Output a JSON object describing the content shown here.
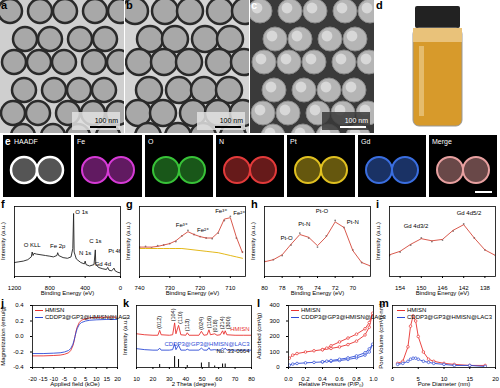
{
  "image_panels": [
    {
      "panel": "a",
      "scale_bar": "100 nm"
    },
    {
      "panel": "b",
      "scale_bar": "100 nm"
    },
    {
      "panel": "c",
      "scale_bar": "100 nm"
    },
    {
      "panel": "d"
    },
    {
      "panel": "e",
      "maps": [
        "HAADF",
        "Fe",
        "O",
        "N",
        "Pt",
        "Gd",
        "Merge"
      ],
      "colors": [
        "#ffffff",
        "#d63ad6",
        "#38c238",
        "#e23a3a",
        "#e0c020",
        "#3a6ee0",
        "#e8a0a0"
      ]
    }
  ],
  "chart_data": [
    {
      "panel": "f",
      "type": "line",
      "x_label": "Binding Energy (eV)",
      "y_label": "Intensity (a.u.)",
      "xlim": [
        1200,
        0
      ],
      "xticks": [
        1200,
        800,
        400,
        0
      ],
      "ylim": [
        0,
        100
      ],
      "tick_labels": "x",
      "x": [
        1200,
        1150,
        1100,
        1050,
        1010,
        1000,
        990,
        980,
        950,
        900,
        850,
        800,
        760,
        720,
        711,
        700,
        650,
        600,
        560,
        540,
        531,
        525,
        500,
        450,
        410,
        400,
        390,
        350,
        300,
        285,
        280,
        250,
        200,
        160,
        145,
        130,
        100,
        74,
        60,
        30,
        0
      ],
      "series": [
        {
          "color": "#222222",
          "values": [
            20,
            21,
            22,
            24,
            28,
            35,
            30,
            33,
            32,
            31,
            30,
            29,
            28,
            30,
            34,
            30,
            27,
            26,
            28,
            40,
            90,
            35,
            25,
            20,
            18,
            22,
            17,
            15,
            17,
            38,
            18,
            13,
            11,
            10,
            13,
            9,
            8,
            12,
            8,
            6,
            5
          ]
        }
      ],
      "annotations": [
        {
          "text": "O KLL",
          "x": 1000,
          "y": 45
        },
        {
          "text": "Fe 2p",
          "x": 711,
          "y": 44
        },
        {
          "text": "O 1s",
          "x": 440,
          "y": 92
        },
        {
          "text": "N 1s",
          "x": 400,
          "y": 34
        },
        {
          "text": "C 1s",
          "x": 285,
          "y": 50
        },
        {
          "text": "Gd 4d",
          "x": 200,
          "y": 18
        },
        {
          "text": "Pt 4f",
          "x": 70,
          "y": 36
        }
      ]
    },
    {
      "panel": "g",
      "type": "line",
      "x_label": "Binding Energy (eV)",
      "y_label": "Intensity (a.u.)",
      "xlim": [
        740,
        705
      ],
      "xticks": [
        740,
        730,
        720,
        710
      ],
      "ylim": [
        0,
        100
      ],
      "tick_labels": "x",
      "x": [
        740,
        738,
        736,
        734,
        732,
        730,
        728,
        726,
        724,
        722,
        720,
        718,
        716,
        714,
        712,
        710,
        708,
        706
      ],
      "series": [
        {
          "type": "scatter",
          "color": "#7f7f7f",
          "values": [
            42,
            43,
            41,
            44,
            45,
            47,
            50,
            58,
            66,
            60,
            57,
            55,
            54,
            62,
            80,
            86,
            55,
            35
          ]
        },
        {
          "type": "line",
          "color": "#d4473a",
          "values": [
            42,
            42,
            42,
            43,
            45,
            47,
            51,
            58,
            64,
            60,
            57,
            55,
            55,
            63,
            82,
            84,
            56,
            34
          ]
        },
        {
          "type": "line",
          "color": "#e0b000",
          "values": [
            40,
            40,
            40,
            40,
            40,
            40,
            40,
            40,
            39,
            38,
            37,
            36,
            35,
            34,
            32,
            30,
            28,
            26
          ]
        }
      ],
      "annotations": [
        {
          "text": "Fe³⁺",
          "x": 726,
          "y": 74
        },
        {
          "text": "Fe²⁺",
          "x": 719,
          "y": 66
        },
        {
          "text": "Fe³⁺",
          "x": 713,
          "y": 93
        },
        {
          "text": "Fe²⁺",
          "x": 707,
          "y": 90
        }
      ]
    },
    {
      "panel": "h",
      "type": "line",
      "x_label": "Binding Energy (eV)",
      "y_label": "Intensity (a.u.)",
      "xlim": [
        80,
        68
      ],
      "xticks": [
        80,
        78,
        76,
        74,
        72,
        70
      ],
      "ylim": [
        0,
        100
      ],
      "tick_labels": "x",
      "x": [
        80,
        79,
        78,
        77,
        76,
        75,
        74,
        73,
        72,
        71,
        70,
        69,
        68
      ],
      "series": [
        {
          "type": "scatter",
          "color": "#7f7f7f",
          "values": [
            22,
            24,
            30,
            45,
            62,
            55,
            42,
            58,
            80,
            70,
            38,
            20,
            15
          ]
        },
        {
          "type": "line",
          "color": "#d4473a",
          "values": [
            21,
            24,
            31,
            46,
            60,
            56,
            44,
            57,
            78,
            70,
            37,
            20,
            15
          ]
        }
      ],
      "annotations": [
        {
          "text": "Pt-O",
          "x": 77.5,
          "y": 55
        },
        {
          "text": "Pt-N",
          "x": 75.5,
          "y": 75
        },
        {
          "text": "Pt-O",
          "x": 73.5,
          "y": 93
        },
        {
          "text": "Pt-N",
          "x": 70,
          "y": 78
        }
      ]
    },
    {
      "panel": "i",
      "type": "line",
      "x_label": "Binding Energy (eV)",
      "y_label": "Intensity (a.u.)",
      "xlim": [
        156,
        136
      ],
      "xticks": [
        154,
        150,
        146,
        142,
        138
      ],
      "ylim": [
        0,
        100
      ],
      "tick_labels": "x",
      "x": [
        156,
        154,
        152,
        150,
        148,
        146,
        144,
        142,
        140,
        138,
        136
      ],
      "series": [
        {
          "type": "scatter",
          "color": "#7f7f7f",
          "values": [
            30,
            35,
            45,
            55,
            50,
            52,
            65,
            75,
            55,
            38,
            30
          ]
        },
        {
          "type": "line",
          "color": "#d4473a",
          "values": [
            31,
            36,
            46,
            54,
            51,
            53,
            66,
            74,
            55,
            38,
            30
          ]
        }
      ],
      "annotations": [
        {
          "text": "Gd 4d3/2",
          "x": 151,
          "y": 72
        },
        {
          "text": "Gd 4d5/2",
          "x": 141,
          "y": 90
        }
      ]
    },
    {
      "panel": "j",
      "type": "line",
      "x_label": "Applied field (kOe)",
      "y_label": "Magnetization (emu/g)",
      "xlim": [
        -20,
        20
      ],
      "xticks": [
        -20,
        -15,
        -10,
        -5,
        0,
        5,
        10,
        15,
        20
      ],
      "ylim": [
        -0.4,
        0.4
      ],
      "yticks": [
        -0.4,
        -0.2,
        {
          "value": 0,
          "label": "0.0"
        },
        0.2,
        0.4
      ],
      "legend": "top-left",
      "x": [
        -20,
        -15,
        -10,
        -7,
        -5,
        -3,
        -2,
        -1,
        -0.5,
        0,
        0.5,
        1,
        2,
        3,
        5,
        7,
        10,
        15,
        20
      ],
      "series": [
        {
          "name": "HMISN",
          "color": "#e8312f",
          "values": [
            -0.25,
            -0.25,
            -0.245,
            -0.24,
            -0.23,
            -0.21,
            -0.18,
            -0.12,
            -0.07,
            0,
            0.07,
            0.12,
            0.18,
            0.21,
            0.23,
            0.24,
            0.245,
            0.25,
            0.25
          ]
        },
        {
          "name": "CDDP3@GP3@HMISN@LAC3",
          "color": "#2d4bd6",
          "values": [
            -0.22,
            -0.22,
            -0.215,
            -0.21,
            -0.2,
            -0.18,
            -0.155,
            -0.1,
            -0.055,
            0,
            0.055,
            0.1,
            0.155,
            0.18,
            0.2,
            0.21,
            0.215,
            0.22,
            0.22
          ]
        }
      ]
    },
    {
      "panel": "k",
      "type": "line",
      "x_label": "2 Theta (degree)",
      "y_label": "Intensity (a.u.)",
      "xlim": [
        10,
        80
      ],
      "xticks": [
        10,
        20,
        30,
        40,
        50,
        60,
        70,
        80
      ],
      "ylim": [
        0,
        125
      ],
      "tick_labels": "x",
      "x": [
        10,
        15,
        20,
        23,
        24.1,
        25,
        30,
        32,
        33.2,
        34,
        35.6,
        37,
        40,
        40.9,
        42,
        45,
        48,
        49.5,
        51,
        53,
        54.1,
        55,
        57.6,
        59,
        61,
        62.4,
        63.2,
        64,
        65,
        70,
        75,
        80
      ],
      "series": [
        {
          "name": "HMISN",
          "color": "#e8312f",
          "values": [
            68,
            66,
            65,
            65,
            75,
            66,
            65,
            66,
            90,
            68,
            85,
            66,
            65,
            70,
            65,
            65,
            65,
            73,
            65,
            66,
            76,
            66,
            68,
            65,
            66,
            74,
            67,
            74,
            66,
            65,
            65,
            65
          ]
        },
        {
          "name": "CDDP3@GP3@HMISN@LAC3",
          "color": "#2d4bd6",
          "values": [
            38,
            36,
            35,
            35,
            39,
            35,
            35,
            36,
            48,
            36,
            45,
            35,
            35,
            37,
            35,
            35,
            35,
            39,
            35,
            35,
            40,
            35,
            36,
            35,
            35,
            39,
            36,
            39,
            35,
            35,
            35,
            35
          ]
        },
        {
          "name": "No. 33-0664",
          "type": "stem",
          "color": "#000000",
          "x": [
            24.1,
            33.2,
            35.6,
            40.9,
            49.5,
            54.1,
            57.6,
            62.4,
            64.0
          ],
          "values": [
            6,
            22,
            16,
            4,
            9,
            10,
            3,
            7,
            7
          ]
        }
      ],
      "annotations": [
        {
          "text": "(012)",
          "x": 24,
          "y": 78
        },
        {
          "text": "(104)",
          "x": 32.5,
          "y": 93
        },
        {
          "text": "(110)",
          "x": 36.5,
          "y": 88
        },
        {
          "text": "(113)",
          "x": 41,
          "y": 73
        },
        {
          "text": "(024)",
          "x": 49.5,
          "y": 76
        },
        {
          "text": "(116)",
          "x": 54,
          "y": 79
        },
        {
          "text": "(018)",
          "x": 58,
          "y": 71
        },
        {
          "text": "(214)",
          "x": 62,
          "y": 77
        },
        {
          "text": "(300)",
          "x": 66,
          "y": 77
        }
      ]
    },
    {
      "panel": "l",
      "type": "line",
      "x_label": "Relative Pressure (P/P₀)",
      "y_label": "Adsorbed (cm³/g)",
      "xlim": [
        0,
        1
      ],
      "xticks": [
        {
          "value": 0,
          "label": "0.0"
        },
        0.2,
        0.4,
        0.6,
        0.8,
        {
          "value": 1,
          "label": "1.0"
        }
      ],
      "ylim": [
        0,
        400
      ],
      "yticks": [
        0,
        100,
        200,
        300,
        400
      ],
      "legend": "top-left",
      "marker": "circle",
      "x": [
        0.01,
        0.05,
        0.1,
        0.2,
        0.3,
        0.4,
        0.5,
        0.6,
        0.7,
        0.8,
        0.9,
        0.95,
        0.99,
        0.95,
        0.9,
        0.8,
        0.7,
        0.6,
        0.5,
        0.45,
        0.4
      ],
      "series": [
        {
          "name": "HMISN",
          "color": "#e8312f",
          "values": [
            60,
            80,
            90,
            100,
            108,
            115,
            123,
            133,
            148,
            170,
            210,
            260,
            350,
            290,
            250,
            215,
            190,
            165,
            140,
            125,
            115
          ]
        },
        {
          "name": "CDDP3@GP3@HMISN@LAC3",
          "color": "#2d4bd6",
          "values": [
            15,
            22,
            26,
            30,
            33,
            36,
            40,
            45,
            52,
            62,
            80,
            100,
            150,
            120,
            95,
            75,
            62,
            53,
            45,
            41,
            37
          ]
        }
      ]
    },
    {
      "panel": "m",
      "type": "line",
      "x_label": "Pore Diameter (nm)",
      "y_label": "Pore Volume (cm³/g·nm)",
      "xlim": [
        0,
        20
      ],
      "xticks": [
        0,
        5,
        10,
        15,
        20
      ],
      "ylim": [
        0,
        0.06
      ],
      "tick_labels": "x",
      "legend": "top-right",
      "marker": "circle",
      "x": [
        1,
        2,
        3,
        3.5,
        4,
        4.5,
        5,
        6,
        7,
        8,
        10,
        12,
        15,
        18
      ],
      "series": [
        {
          "name": "HMISN",
          "color": "#e8312f",
          "values": [
            0.004,
            0.006,
            0.02,
            0.04,
            0.05,
            0.045,
            0.03,
            0.015,
            0.008,
            0.006,
            0.004,
            0.003,
            0.002,
            0.002
          ]
        },
        {
          "name": "CDDP3@GP3@HMISN@LAC3",
          "color": "#2d4bd6",
          "values": [
            0.003,
            0.004,
            0.006,
            0.008,
            0.009,
            0.009,
            0.008,
            0.006,
            0.005,
            0.004,
            0.003,
            0.002,
            0.002,
            0.001
          ]
        }
      ]
    }
  ]
}
